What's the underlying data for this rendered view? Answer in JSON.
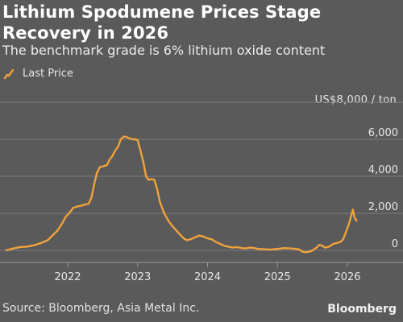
{
  "title": "Lithium Spodumene Prices Stage Recovery in 2026",
  "subtitle": "The benchmark grade is 6% lithium oxide content",
  "legend": {
    "label": "Last Price",
    "color": "#f0a23b",
    "icon": "line-swatch-icon"
  },
  "unit_label": "US$8,000 / ton",
  "source": "Source: Bloomberg, Asia Metal Inc.",
  "brand": "Bloomberg",
  "chart_data": {
    "type": "line",
    "title": "Lithium Spodumene Prices Stage Recovery in 2026",
    "subtitle": "The benchmark grade is 6% lithium oxide content",
    "xlabel": "",
    "ylabel": "",
    "y_unit": "US$8,000 / ton",
    "ylim": [
      0,
      8000
    ],
    "xlim": [
      2021.08,
      2026.38
    ],
    "grid": true,
    "legend_position": "top-left",
    "x_ticks": [
      2022,
      2023,
      2024,
      2025,
      2026
    ],
    "x_tick_labels": [
      "2022",
      "2023",
      "2024",
      "2025",
      "2026"
    ],
    "y_ticks": [
      0,
      2000,
      4000,
      6000
    ],
    "y_tick_labels": [
      "0",
      "2,000",
      "4,000",
      "6,000"
    ],
    "series": [
      {
        "name": "Last Price",
        "color": "#f0a23b",
        "x": [
          2021.12,
          2021.22,
          2021.32,
          2021.42,
          2021.52,
          2021.62,
          2021.72,
          2021.78,
          2021.85,
          2021.92,
          2021.97,
          2022.03,
          2022.08,
          2022.14,
          2022.2,
          2022.25,
          2022.3,
          2022.34,
          2022.38,
          2022.42,
          2022.46,
          2022.5,
          2022.56,
          2022.6,
          2022.64,
          2022.68,
          2022.72,
          2022.76,
          2022.8,
          2022.84,
          2022.88,
          2022.92,
          2022.96,
          2023.0,
          2023.04,
          2023.08,
          2023.12,
          2023.16,
          2023.2,
          2023.24,
          2023.28,
          2023.32,
          2023.38,
          2023.44,
          2023.5,
          2023.56,
          2023.62,
          2023.66,
          2023.7,
          2023.76,
          2023.82,
          2023.88,
          2023.94,
          2024.0,
          2024.06,
          2024.12,
          2024.18,
          2024.24,
          2024.3,
          2024.36,
          2024.42,
          2024.48,
          2024.54,
          2024.6,
          2024.66,
          2024.72,
          2024.8,
          2024.9,
          2025.0,
          2025.1,
          2025.2,
          2025.3,
          2025.36,
          2025.42,
          2025.48,
          2025.52,
          2025.56,
          2025.6,
          2025.64,
          2025.68,
          2025.72,
          2025.76,
          2025.8,
          2025.85,
          2025.9,
          2025.94,
          2025.98,
          2026.02,
          2026.05,
          2026.08,
          2026.1,
          2026.13
        ],
        "y": [
          0,
          100,
          180,
          200,
          280,
          400,
          560,
          800,
          1050,
          1450,
          1800,
          2050,
          2300,
          2370,
          2420,
          2480,
          2520,
          2850,
          3600,
          4200,
          4500,
          4530,
          4600,
          4900,
          5100,
          5400,
          5600,
          6000,
          6150,
          6130,
          6050,
          6000,
          6000,
          5950,
          5400,
          4800,
          4000,
          3800,
          3850,
          3800,
          3300,
          2600,
          2000,
          1600,
          1300,
          1050,
          800,
          650,
          550,
          600,
          700,
          800,
          750,
          650,
          600,
          450,
          350,
          250,
          200,
          150,
          180,
          130,
          100,
          150,
          130,
          80,
          60,
          40,
          80,
          120,
          100,
          60,
          -80,
          -100,
          -50,
          50,
          150,
          300,
          250,
          150,
          180,
          250,
          350,
          400,
          450,
          600,
          1000,
          1400,
          1800,
          2200,
          1800,
          1600
        ]
      }
    ]
  }
}
